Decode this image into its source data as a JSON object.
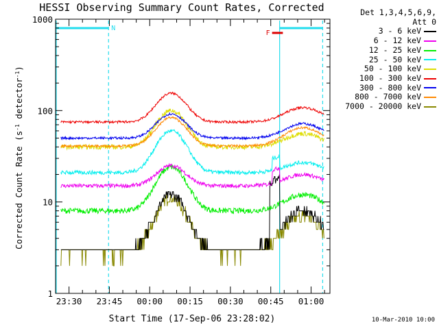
{
  "chart_data": {
    "type": "line",
    "title": "HESSI Observing Summary Count Rates, Corrected",
    "xlabel": "Start Time (17-Sep-06 23:28:02)",
    "ylabel_main": "Corrected Count Rate (s",
    "ylabel_sup1": "-1",
    "ylabel_mid": " detector",
    "ylabel_sup2": "-1",
    "ylabel_end": ")",
    "yscale": "log",
    "ylim": [
      1,
      1000
    ],
    "xlim_minutes": [
      -35,
      67
    ],
    "x_ticks": [
      {
        "label": "23:30",
        "minute": -30
      },
      {
        "label": "23:45",
        "minute": -15
      },
      {
        "label": "00:00",
        "minute": 0
      },
      {
        "label": "00:15",
        "minute": 15
      },
      {
        "label": "00:30",
        "minute": 30
      },
      {
        "label": "00:45",
        "minute": 45
      },
      {
        "label": "01:00",
        "minute": 60
      }
    ],
    "y_ticks": [
      {
        "label": "1",
        "value": 1
      },
      {
        "label": "10",
        "value": 10
      },
      {
        "label": "100",
        "value": 100
      },
      {
        "label": "1000",
        "value": 1000
      }
    ],
    "legend": {
      "header1": "Det 1,3,4,5,6,9,",
      "header2": "Att 0",
      "position": "top-right-outside"
    },
    "annotations": {
      "night_label": "N",
      "flare_label": "F",
      "night_color": "#22ddee",
      "flare_color": "#dd0000",
      "night_start_minute": -15.3,
      "day_start_minute": 48.3,
      "night2_start_minute": 64.3,
      "flare_start_minute": 45.5,
      "flare_end_minute": 49.5
    },
    "series": [
      {
        "name": "3 - 6 keV",
        "color": "#000000",
        "base": 3.0,
        "peak1": 12,
        "peak2": 8,
        "noise": 0.12
      },
      {
        "name": "6 - 12 keV",
        "color": "#ee00ee",
        "base": 15,
        "peak1": 25,
        "peak2": 20,
        "noise": 0.05
      },
      {
        "name": "12 - 25 keV",
        "color": "#00ee00",
        "base": 8,
        "peak1": 24,
        "peak2": 12,
        "noise": 0.07
      },
      {
        "name": "25 - 50 keV",
        "color": "#00eeee",
        "base": 21,
        "peak1": 60,
        "peak2": 27,
        "noise": 0.05
      },
      {
        "name": "50 - 100 keV",
        "color": "#dddd00",
        "base": 40,
        "peak1": 100,
        "peak2": 56,
        "noise": 0.06
      },
      {
        "name": "100 - 300 keV",
        "color": "#ee0000",
        "base": 75,
        "peak1": 155,
        "peak2": 108,
        "noise": 0.03
      },
      {
        "name": "300 - 800 keV",
        "color": "#0000ee",
        "base": 50,
        "peak1": 92,
        "peak2": 72,
        "noise": 0.03
      },
      {
        "name": "800 - 7000 keV",
        "color": "#ff8800",
        "base": 41,
        "peak1": 84,
        "peak2": 65,
        "noise": 0.03
      },
      {
        "name": "7000 - 20000 keV",
        "color": "#888800",
        "base": 2.8,
        "peak1": 11,
        "peak2": 7,
        "noise": 0.14
      }
    ]
  },
  "footer": {
    "timestamp": "10-Mar-2010 10:00"
  }
}
